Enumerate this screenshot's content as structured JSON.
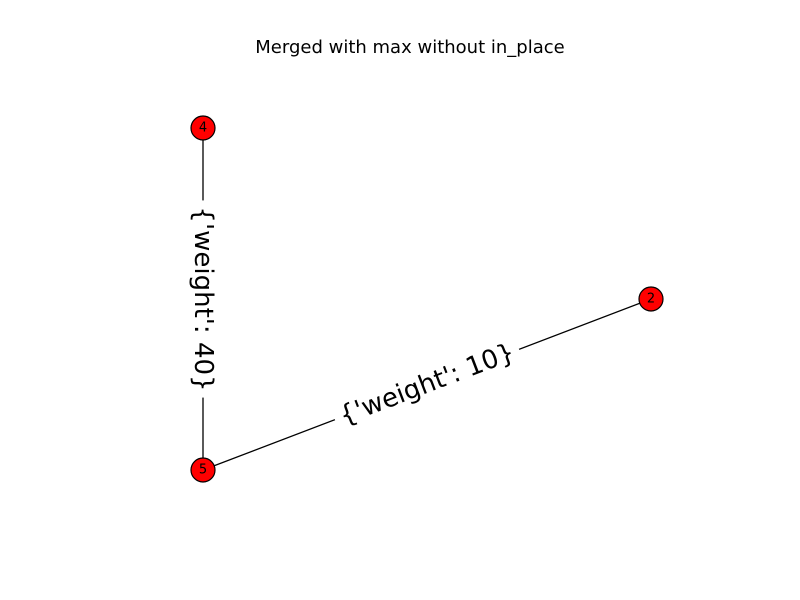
{
  "figure": {
    "title": "Merged with max without in_place"
  },
  "graph": {
    "node_color": "#ff0000",
    "edge_color": "#000000",
    "nodes": [
      {
        "id": "4",
        "label": "4"
      },
      {
        "id": "2",
        "label": "2"
      },
      {
        "id": "5",
        "label": "5"
      }
    ],
    "edges": [
      {
        "source": "4",
        "target": "5",
        "label": "{'weight': 40}"
      },
      {
        "source": "5",
        "target": "2",
        "label": "{'weight': 10}"
      }
    ]
  }
}
